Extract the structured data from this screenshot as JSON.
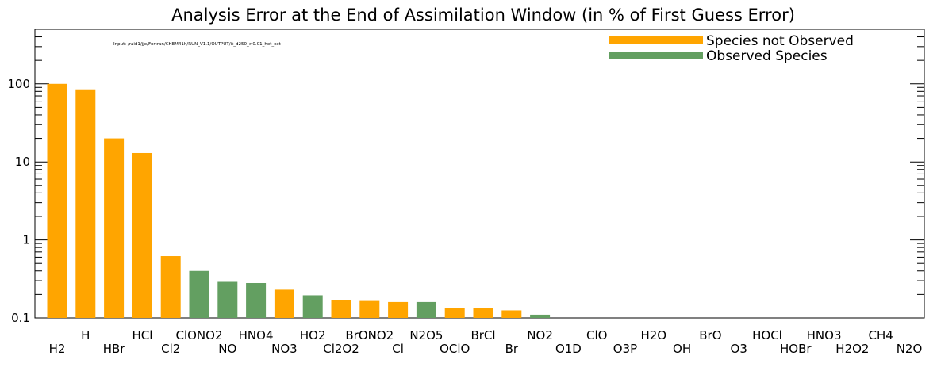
{
  "chart_data": {
    "type": "bar",
    "title": "Analysis Error at the End of Assimilation Window (in % of First Guess Error)",
    "annotation": "Input: /raid1/jje/Fortran/CHEM41h/RUN_V1.1/OUTPUT/it_d250_>0.01_het_ext",
    "yscale": "log",
    "ylim": [
      0.1,
      500
    ],
    "yticks": [
      0.1,
      1,
      10,
      100
    ],
    "ytick_labels": [
      "0.1",
      "1",
      "10",
      "100"
    ],
    "legend": {
      "position": "top-right",
      "entries": [
        {
          "label": "Species not Observed",
          "color": "#ffa500"
        },
        {
          "label": "Observed Species",
          "color": "#639f61"
        }
      ]
    },
    "categories": [
      "H2",
      "H",
      "HBr",
      "HCl",
      "Cl2",
      "ClONO2",
      "NO",
      "HNO4",
      "NO3",
      "HO2",
      "Cl2O2",
      "BrONO2",
      "Cl",
      "N2O5",
      "OClO",
      "BrCl",
      "Br",
      "NO2",
      "O1D",
      "ClO",
      "O3P",
      "H2O",
      "OH",
      "BrO",
      "O3",
      "HOCl",
      "HOBr",
      "HNO3",
      "H2O2",
      "CH4",
      "N2O"
    ],
    "values": [
      100,
      85,
      20,
      13,
      0.62,
      0.4,
      0.29,
      0.28,
      0.23,
      0.195,
      0.17,
      0.165,
      0.16,
      0.16,
      0.135,
      0.133,
      0.125,
      0.11,
      0.1,
      0.1,
      0.1,
      0.1,
      0.1,
      0.1,
      0.1,
      0.1,
      0.1,
      0.1,
      0.1,
      0.1,
      0.1
    ],
    "observed": [
      false,
      false,
      false,
      false,
      false,
      true,
      true,
      true,
      false,
      true,
      false,
      false,
      false,
      true,
      false,
      false,
      false,
      true,
      false,
      false,
      false,
      false,
      false,
      false,
      false,
      false,
      false,
      false,
      false,
      false,
      false
    ]
  }
}
